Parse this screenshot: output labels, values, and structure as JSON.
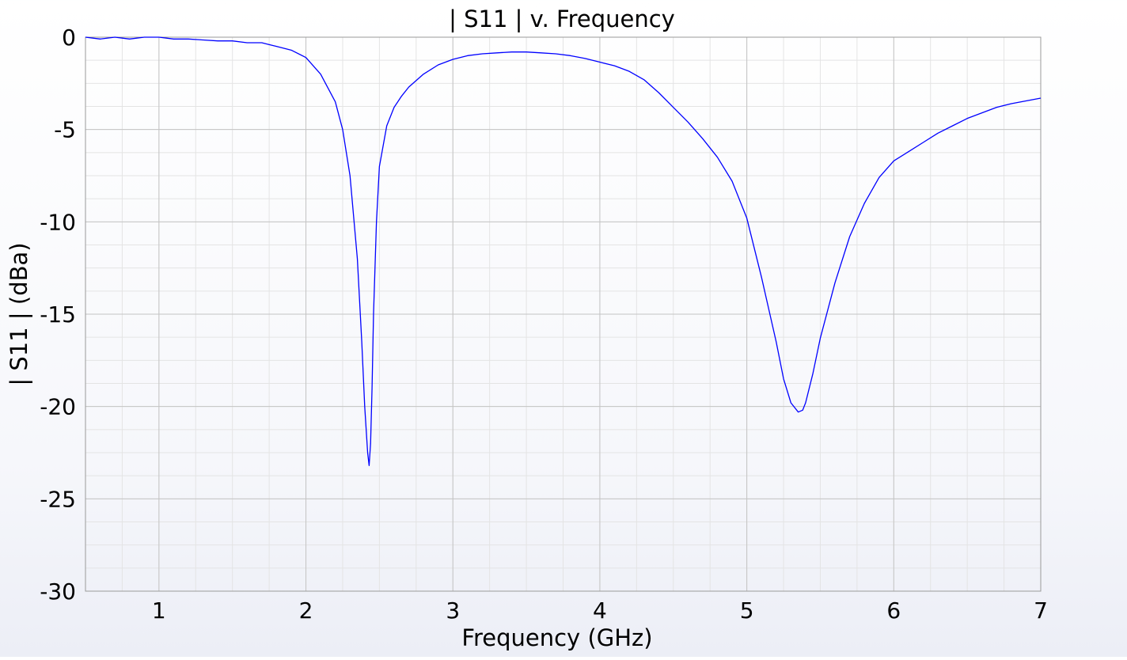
{
  "chart_data": {
    "type": "line",
    "title": "| S11 | v. Frequency",
    "xlabel": "Frequency (GHz)",
    "ylabel": "| S11 | (dBa)",
    "xlim": [
      0.5,
      7
    ],
    "ylim": [
      -30,
      0
    ],
    "x_ticks": [
      1,
      2,
      3,
      4,
      5,
      6,
      7
    ],
    "y_ticks": [
      0,
      -5,
      -10,
      -15,
      -20,
      -25,
      -30
    ],
    "x_tick_labels": [
      "1",
      "2",
      "3",
      "4",
      "5",
      "6",
      "7"
    ],
    "y_tick_labels": [
      "0",
      "-5",
      "-10",
      "-15",
      "-20",
      "-25",
      "-30"
    ],
    "x_minor_step": 0.25,
    "y_minor_step": 1.25,
    "grid": true,
    "line_color": "#0000ff",
    "series": [
      {
        "x": [
          0.5,
          0.6,
          0.7,
          0.8,
          0.9,
          1.0,
          1.1,
          1.2,
          1.3,
          1.4,
          1.5,
          1.6,
          1.7,
          1.75,
          1.8,
          1.9,
          2.0,
          2.1,
          2.2,
          2.25,
          2.3,
          2.35,
          2.38,
          2.4,
          2.42,
          2.43,
          2.44,
          2.45,
          2.46,
          2.48,
          2.5,
          2.55,
          2.6,
          2.65,
          2.7,
          2.8,
          2.9,
          3.0,
          3.1,
          3.2,
          3.3,
          3.4,
          3.5,
          3.6,
          3.7,
          3.8,
          3.9,
          4.0,
          4.1,
          4.2,
          4.3,
          4.4,
          4.5,
          4.6,
          4.7,
          4.8,
          4.9,
          5.0,
          5.1,
          5.2,
          5.25,
          5.3,
          5.35,
          5.38,
          5.4,
          5.45,
          5.5,
          5.6,
          5.7,
          5.8,
          5.9,
          6.0,
          6.1,
          6.2,
          6.3,
          6.4,
          6.5,
          6.6,
          6.7,
          6.8,
          6.9,
          7.0
        ],
        "y": [
          0.0,
          -0.1,
          0.0,
          -0.1,
          0.0,
          0.0,
          -0.1,
          -0.1,
          -0.15,
          -0.2,
          -0.2,
          -0.3,
          -0.3,
          -0.4,
          -0.5,
          -0.7,
          -1.1,
          -2.0,
          -3.5,
          -5.0,
          -7.5,
          -12.0,
          -16.5,
          -20.0,
          -22.5,
          -23.2,
          -22.0,
          -19.0,
          -15.0,
          -10.0,
          -7.0,
          -4.8,
          -3.8,
          -3.2,
          -2.7,
          -2.0,
          -1.5,
          -1.2,
          -1.0,
          -0.9,
          -0.85,
          -0.8,
          -0.8,
          -0.85,
          -0.9,
          -1.0,
          -1.15,
          -1.35,
          -1.55,
          -1.85,
          -2.3,
          -3.0,
          -3.8,
          -4.6,
          -5.5,
          -6.5,
          -7.8,
          -9.8,
          -13.0,
          -16.5,
          -18.5,
          -19.8,
          -20.3,
          -20.2,
          -19.8,
          -18.2,
          -16.3,
          -13.3,
          -10.8,
          -9.0,
          -7.6,
          -6.7,
          -6.2,
          -5.7,
          -5.2,
          -4.8,
          -4.4,
          -4.1,
          -3.8,
          -3.6,
          -3.45,
          -3.3
        ]
      }
    ]
  }
}
